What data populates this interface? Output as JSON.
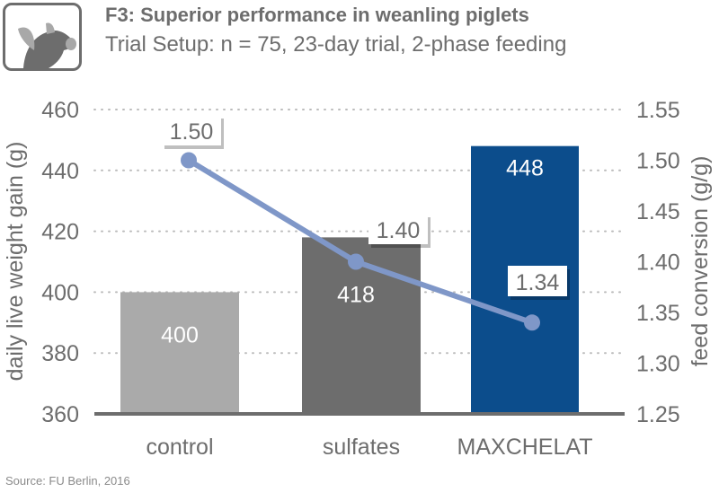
{
  "header": {
    "title": "F3: Superior performance in weanling piglets",
    "subtitle": "Trial Setup: n = 75, 23-day trial, 2-phase feeding",
    "logo": "pig-icon"
  },
  "source": "Source: FU Berlin, 2016",
  "chart_data": {
    "type": "bar+line",
    "categories": [
      "control",
      "sulfates",
      "MAXCHELAT"
    ],
    "series": [
      {
        "name": "daily live weight gain (g)",
        "type": "bar",
        "axis": "left",
        "values": [
          400,
          418,
          448
        ],
        "labels": [
          "400",
          "418",
          "448"
        ],
        "colors": [
          "#aaaaaa",
          "#6d6d6d",
          "#0c4d8c"
        ]
      },
      {
        "name": "feed conversion (g/g)",
        "type": "line",
        "axis": "right",
        "values": [
          1.5,
          1.4,
          1.34
        ],
        "labels": [
          "1.50",
          "1.40",
          "1.34"
        ],
        "color": "#7f97c8"
      }
    ],
    "ylabel": "daily live weight gain (g)",
    "ylim": [
      360,
      460
    ],
    "yticks": [
      "360",
      "380",
      "400",
      "420",
      "440",
      "460"
    ],
    "y2label": "feed conversion (g/g)",
    "y2lim": [
      1.25,
      1.55
    ],
    "y2ticks": [
      "1.25",
      "1.30",
      "1.35",
      "1.40",
      "1.45",
      "1.50",
      "1.55"
    ],
    "grid": "dotted horizontal"
  }
}
